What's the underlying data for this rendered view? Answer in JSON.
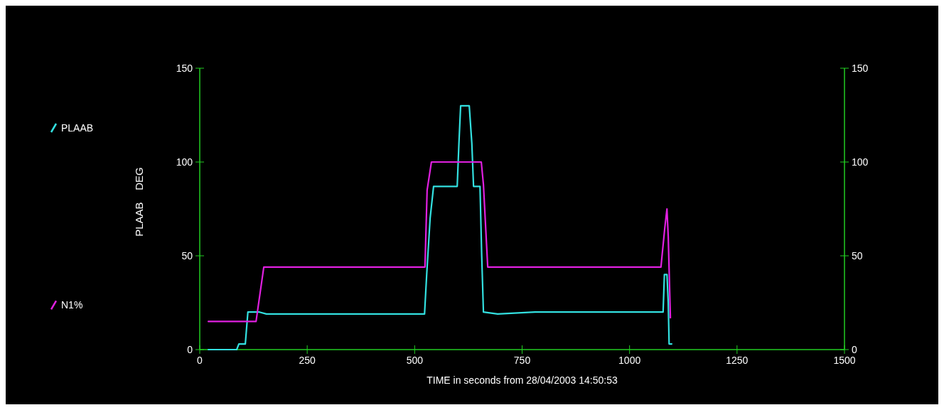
{
  "chart_data": {
    "type": "line",
    "xlabel": "TIME in seconds from 28/04/2003 14:50:53",
    "ylabel": "PLAAB    DEG",
    "xlim": [
      0,
      1500
    ],
    "xticks": [
      0,
      250,
      500,
      750,
      1000,
      1250,
      1500
    ],
    "ylim": [
      0,
      150
    ],
    "yticks": [
      0,
      50,
      100,
      150
    ],
    "y2lim": [
      0,
      150
    ],
    "y2ticks": [
      0,
      50,
      100,
      150
    ],
    "grid": false,
    "legend": "left",
    "marker": "none",
    "line_style": "solid",
    "series": [
      {
        "name": "PLAAB",
        "color": "#33e0e0",
        "x": [
          20,
          86,
          91,
          106,
          112,
          139,
          155,
          523,
          528,
          536,
          544,
          599,
          603,
          607,
          627,
          633,
          637,
          652,
          656,
          660,
          693,
          780,
          1078,
          1081,
          1087,
          1090,
          1092,
          1098
        ],
        "values": [
          0,
          0,
          3,
          3,
          20,
          20,
          19,
          19,
          40,
          70,
          87,
          87,
          110,
          130,
          130,
          110,
          87,
          87,
          50,
          20,
          19,
          20,
          20,
          40,
          40,
          25,
          3,
          3
        ]
      },
      {
        "name": "N1%",
        "color": "#e020e0",
        "x": [
          20,
          131,
          149,
          524,
          529,
          539,
          655,
          660,
          670,
          1073,
          1082,
          1087,
          1090,
          1095
        ],
        "values": [
          15,
          15,
          44,
          44,
          85,
          100,
          100,
          88,
          44,
          44,
          65,
          75,
          60,
          17
        ]
      }
    ]
  }
}
